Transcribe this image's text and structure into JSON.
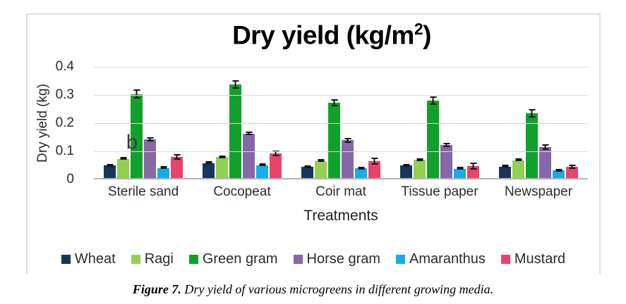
{
  "chart_data": {
    "type": "bar",
    "title": "Dry yield (kg/m2)",
    "title_prefix": "Dry yield (kg/m",
    "title_sup": "2",
    "title_suffix": ")",
    "xlabel": "Treatments",
    "ylabel": "Dry yield (kg)",
    "ylim": [
      0,
      0.4
    ],
    "yticks": [
      0,
      0.1,
      0.2,
      0.3,
      0.4
    ],
    "ytick_labels": [
      "0",
      "0.1",
      "0.2",
      "0.3",
      "0.4"
    ],
    "grid": true,
    "legend_position": "bottom",
    "categories": [
      "Sterile sand",
      "Cocopeat",
      "Coir mat",
      "Tissue paper",
      "Newspaper"
    ],
    "series": [
      {
        "name": "Wheat",
        "color": "#17365d",
        "values": [
          0.045,
          0.052,
          0.04,
          0.044,
          0.04
        ],
        "errors": [
          0.004,
          0.003,
          0.005,
          0.003,
          0.003
        ]
      },
      {
        "name": "Ragi",
        "color": "#92d050",
        "values": [
          0.068,
          0.075,
          0.06,
          0.066,
          0.063
        ],
        "errors": [
          0.004,
          0.004,
          0.003,
          0.005,
          0.002
        ]
      },
      {
        "name": "Green gram",
        "color": "#10a12c",
        "values": [
          0.298,
          0.332,
          0.268,
          0.276,
          0.23
        ],
        "errors": [
          0.016,
          0.015,
          0.013,
          0.015,
          0.014
        ]
      },
      {
        "name": "Horse gram",
        "color": "#8667a8",
        "values": [
          0.138,
          0.158,
          0.134,
          0.118,
          0.11
        ],
        "errors": [
          0.008,
          0.006,
          0.009,
          0.007,
          0.009
        ]
      },
      {
        "name": "Amaranthus",
        "color": "#12aee9",
        "values": [
          0.035,
          0.046,
          0.034,
          0.033,
          0.027
        ],
        "errors": [
          0.003,
          0.003,
          0.003,
          0.004,
          0.004
        ]
      },
      {
        "name": "Mustard",
        "color": "#e8436b",
        "values": [
          0.075,
          0.088,
          0.06,
          0.042,
          0.04
        ],
        "errors": [
          0.01,
          0.01,
          0.013,
          0.012,
          0.008
        ]
      }
    ],
    "annotations": [
      {
        "text": "b",
        "category_index": 0,
        "series_index": 2,
        "at_value": 0.13
      }
    ],
    "colors": {
      "gridline": "#d9d9d9",
      "axis_line": "#b3b3b3",
      "error_bar": "#141414",
      "frame_border": "#dedede",
      "text": "#2b2b2b"
    }
  },
  "figure": {
    "caption_label": "Figure 7.",
    "caption_text": " Dry yield of various microgreens in different growing media."
  }
}
